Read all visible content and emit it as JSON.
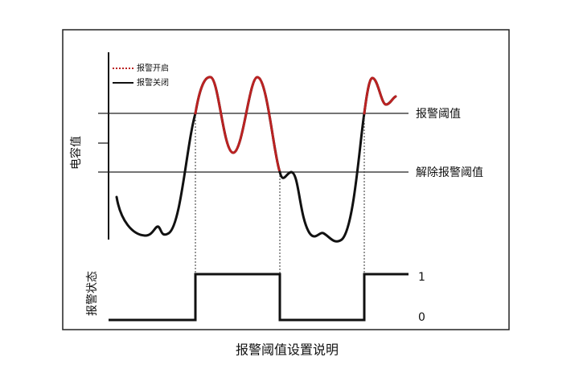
{
  "legend": {
    "alarm_on": "报警开启",
    "alarm_off": "报警关闭"
  },
  "axes": {
    "value_label": "电容值",
    "state_label": "报警状态"
  },
  "thresholds": {
    "alarm": "报警阈值",
    "release": "解除报警阈值"
  },
  "state_levels": {
    "high": "1",
    "low": "0"
  },
  "caption": "报警阈值设置说明"
}
